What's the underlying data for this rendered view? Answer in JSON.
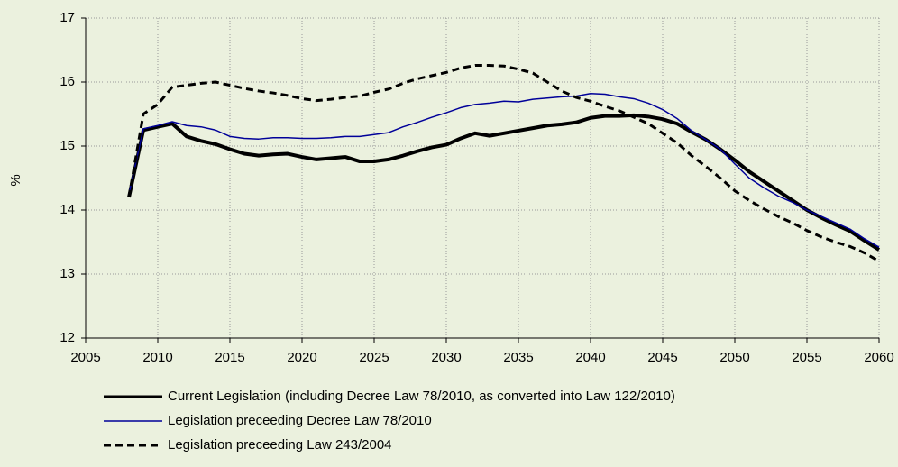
{
  "chart_data": {
    "type": "line",
    "ylabel": "%",
    "x": [
      2008,
      2009,
      2010,
      2011,
      2012,
      2013,
      2014,
      2015,
      2016,
      2017,
      2018,
      2019,
      2020,
      2021,
      2022,
      2023,
      2024,
      2025,
      2026,
      2027,
      2028,
      2029,
      2030,
      2031,
      2032,
      2033,
      2034,
      2035,
      2036,
      2037,
      2038,
      2039,
      2040,
      2041,
      2042,
      2043,
      2044,
      2045,
      2046,
      2047,
      2048,
      2049,
      2050,
      2051,
      2052,
      2053,
      2054,
      2055,
      2056,
      2057,
      2058,
      2059,
      2060
    ],
    "xlim": [
      2005,
      2060
    ],
    "xticks": [
      2005,
      2010,
      2015,
      2020,
      2025,
      2030,
      2035,
      2040,
      2045,
      2050,
      2055,
      2060
    ],
    "ylim": [
      12,
      17
    ],
    "yticks": [
      12,
      13,
      14,
      15,
      16,
      17
    ],
    "grid": true,
    "legend": "bottom",
    "series": [
      {
        "name": "Current Legislation (including Decree Law 78/2010, as converted into Law 122/2010)",
        "color": "#000000",
        "width": 4,
        "dash": false,
        "values": [
          14.2,
          15.25,
          15.3,
          15.35,
          15.15,
          15.08,
          15.03,
          14.95,
          14.88,
          14.85,
          14.87,
          14.88,
          14.83,
          14.79,
          14.81,
          14.83,
          14.76,
          14.76,
          14.79,
          14.85,
          14.92,
          14.98,
          15.02,
          15.12,
          15.2,
          15.16,
          15.2,
          15.24,
          15.28,
          15.32,
          15.34,
          15.37,
          15.44,
          15.47,
          15.47,
          15.48,
          15.46,
          15.42,
          15.35,
          15.22,
          15.1,
          14.95,
          14.78,
          14.6,
          14.45,
          14.3,
          14.15,
          14.0,
          13.88,
          13.77,
          13.67,
          13.52,
          13.38
        ]
      },
      {
        "name": "Legislation preceeding Decree Law 78/2010",
        "color": "#000099",
        "width": 1.5,
        "dash": false,
        "values": [
          14.25,
          15.27,
          15.32,
          15.38,
          15.32,
          15.3,
          15.25,
          15.15,
          15.12,
          15.11,
          15.13,
          15.13,
          15.12,
          15.12,
          15.13,
          15.15,
          15.15,
          15.18,
          15.21,
          15.3,
          15.37,
          15.45,
          15.52,
          15.6,
          15.65,
          15.67,
          15.7,
          15.69,
          15.73,
          15.75,
          15.77,
          15.78,
          15.82,
          15.81,
          15.77,
          15.74,
          15.67,
          15.57,
          15.43,
          15.24,
          15.1,
          14.95,
          14.72,
          14.5,
          14.35,
          14.22,
          14.12,
          14.0,
          13.9,
          13.8,
          13.7,
          13.55,
          13.42
        ]
      },
      {
        "name": "Legislation preceeding Law 243/2004",
        "color": "#000000",
        "width": 3,
        "dash": true,
        "values": [
          14.2,
          15.5,
          15.65,
          15.92,
          15.95,
          15.98,
          16.0,
          15.95,
          15.9,
          15.86,
          15.83,
          15.79,
          15.74,
          15.71,
          15.73,
          15.76,
          15.78,
          15.84,
          15.89,
          15.98,
          16.05,
          16.1,
          16.15,
          16.22,
          16.26,
          16.26,
          16.25,
          16.2,
          16.14,
          16.0,
          15.86,
          15.76,
          15.7,
          15.62,
          15.55,
          15.45,
          15.35,
          15.2,
          15.05,
          14.85,
          14.68,
          14.5,
          14.3,
          14.15,
          14.02,
          13.9,
          13.8,
          13.68,
          13.58,
          13.5,
          13.43,
          13.33,
          13.2
        ]
      }
    ]
  }
}
